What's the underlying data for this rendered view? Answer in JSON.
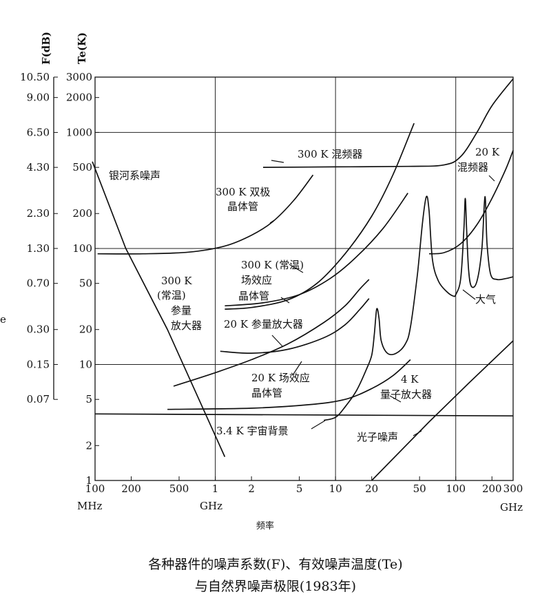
{
  "chart_data": {
    "type": "line",
    "title": "",
    "caption_line1": "各种器件的噪声系数(F)、有效噪声温度(Te)",
    "caption_line2": "与自然界噪声极限(1983年)",
    "xlabel": "频率",
    "y_left_label_F": "F(dB)",
    "y_left_label_T": "Te(K)",
    "side_mark": "e",
    "x_scale": "log",
    "y_scale": "log",
    "x_range_MHz": [
      100,
      300000
    ],
    "y_range_K": [
      1,
      3000
    ],
    "grid": true,
    "x_ticks": [
      {
        "v": 100,
        "label": "100"
      },
      {
        "v": 200,
        "label": "200"
      },
      {
        "v": 500,
        "label": "500"
      },
      {
        "v": 1000,
        "label": "1"
      },
      {
        "v": 2000,
        "label": "2"
      },
      {
        "v": 5000,
        "label": "5"
      },
      {
        "v": 10000,
        "label": "10"
      },
      {
        "v": 20000,
        "label": "20"
      },
      {
        "v": 50000,
        "label": "50"
      },
      {
        "v": 100000,
        "label": "100"
      },
      {
        "v": 200000,
        "label": "200"
      },
      {
        "v": 300000,
        "label": "300"
      }
    ],
    "x_unit_labels": {
      "mhz": "MHz",
      "ghz_mid": "GHz",
      "ghz_end": "GHz"
    },
    "x_grid": [
      1000,
      10000,
      100000
    ],
    "y_ticks_T": [
      {
        "v": 1,
        "label": "1"
      },
      {
        "v": 2,
        "label": "2"
      },
      {
        "v": 5,
        "label": "5"
      },
      {
        "v": 10,
        "label": "10"
      },
      {
        "v": 20,
        "label": "20"
      },
      {
        "v": 50,
        "label": "50"
      },
      {
        "v": 100,
        "label": "100"
      },
      {
        "v": 200,
        "label": "200"
      },
      {
        "v": 500,
        "label": "500"
      },
      {
        "v": 1000,
        "label": "1000"
      },
      {
        "v": 2000,
        "label": "2000"
      },
      {
        "v": 3000,
        "label": "3000"
      }
    ],
    "y_grid": [
      10,
      100,
      1000
    ],
    "y_ticks_F": [
      {
        "T": 3000,
        "label": "10.50"
      },
      {
        "T": 2000,
        "label": "9.00"
      },
      {
        "T": 1000,
        "label": "6.50"
      },
      {
        "T": 500,
        "label": "4.30"
      },
      {
        "T": 200,
        "label": "2.30"
      },
      {
        "T": 100,
        "label": "1.30"
      },
      {
        "T": 50,
        "label": "0.70"
      },
      {
        "T": 20,
        "label": "0.30"
      },
      {
        "T": 10,
        "label": "0.15"
      },
      {
        "T": 5,
        "label": "0.07"
      }
    ],
    "series": [
      {
        "key": "galactic",
        "points": [
          [
            95,
            560
          ],
          [
            180,
            100
          ],
          [
            400,
            20
          ],
          [
            1200,
            1.6
          ]
        ]
      },
      {
        "key": "bjt300",
        "points": [
          [
            105,
            90
          ],
          [
            250,
            90
          ],
          [
            600,
            93
          ],
          [
            1200,
            105
          ],
          [
            2000,
            130
          ],
          [
            3000,
            170
          ],
          [
            4500,
            260
          ],
          [
            6500,
            430
          ]
        ]
      },
      {
        "key": "mixer300",
        "points": [
          [
            2500,
            500
          ],
          [
            10000,
            505
          ],
          [
            40000,
            510
          ],
          [
            80000,
            525
          ],
          [
            110000,
            620
          ],
          [
            150000,
            1000
          ],
          [
            200000,
            1700
          ],
          [
            300000,
            2900
          ]
        ]
      },
      {
        "key": "fet300",
        "points": [
          [
            1200,
            30
          ],
          [
            2000,
            31
          ],
          [
            4000,
            36
          ],
          [
            7000,
            50
          ],
          [
            12000,
            90
          ],
          [
            20000,
            190
          ],
          [
            30000,
            430
          ],
          [
            45000,
            1200
          ]
        ]
      },
      {
        "key": "paramp300",
        "points": [
          [
            1200,
            32
          ],
          [
            2500,
            34
          ],
          [
            5000,
            40
          ],
          [
            9000,
            55
          ],
          [
            15000,
            85
          ],
          [
            25000,
            150
          ],
          [
            40000,
            300
          ]
        ]
      },
      {
        "key": "paramp20",
        "points": [
          [
            1100,
            13
          ],
          [
            2000,
            12.5
          ],
          [
            4000,
            13.5
          ],
          [
            8000,
            17
          ],
          [
            12000,
            22
          ],
          [
            16000,
            30
          ],
          [
            19000,
            37
          ]
        ]
      },
      {
        "key": "fet20",
        "points": [
          [
            450,
            6.5
          ],
          [
            1000,
            8.5
          ],
          [
            2000,
            11
          ],
          [
            4000,
            15
          ],
          [
            8000,
            23
          ],
          [
            12000,
            32
          ],
          [
            16000,
            45
          ],
          [
            19000,
            54
          ]
        ]
      },
      {
        "key": "maser4",
        "points": [
          [
            400,
            4.1
          ],
          [
            2000,
            4.2
          ],
          [
            6000,
            4.5
          ],
          [
            12000,
            5
          ],
          [
            20000,
            6.2
          ],
          [
            30000,
            8
          ],
          [
            42000,
            11
          ]
        ]
      },
      {
        "key": "cmb",
        "points": [
          [
            100,
            3.75
          ],
          [
            300000,
            3.6
          ]
        ]
      },
      {
        "key": "cmb_rise",
        "points": [
          [
            8000,
            3.3
          ],
          [
            10000,
            3.5
          ],
          [
            12000,
            4.3
          ],
          [
            15000,
            6
          ],
          [
            18000,
            9
          ],
          [
            20000,
            12
          ],
          [
            21000,
            18
          ],
          [
            22000,
            30
          ],
          [
            23000,
            25
          ],
          [
            24000,
            16
          ],
          [
            27000,
            12.5
          ],
          [
            32000,
            12.5
          ],
          [
            38000,
            15
          ],
          [
            42000,
            21
          ],
          [
            48000,
            60
          ],
          [
            53000,
            170
          ],
          [
            57000,
            280
          ],
          [
            60000,
            210
          ],
          [
            64000,
            80
          ],
          [
            72000,
            52
          ],
          [
            85000,
            42
          ],
          [
            95000,
            39
          ],
          [
            100000,
            40
          ],
          [
            110000,
            55
          ],
          [
            117000,
            150
          ],
          [
            120000,
            270
          ],
          [
            123000,
            150
          ],
          [
            128000,
            65
          ],
          [
            135000,
            47
          ],
          [
            150000,
            52
          ],
          [
            165000,
            100
          ],
          [
            175000,
            280
          ],
          [
            182000,
            110
          ],
          [
            195000,
            60
          ],
          [
            220000,
            54
          ],
          [
            260000,
            55
          ],
          [
            300000,
            57
          ]
        ]
      },
      {
        "key": "mixer20",
        "points": [
          [
            60000,
            90
          ],
          [
            80000,
            92
          ],
          [
            110000,
            110
          ],
          [
            150000,
            160
          ],
          [
            200000,
            270
          ],
          [
            260000,
            480
          ],
          [
            300000,
            700
          ]
        ]
      },
      {
        "key": "photon",
        "points": [
          [
            20000,
            1
          ],
          [
            60000,
            3.2
          ],
          [
            130000,
            7
          ],
          [
            300000,
            16
          ]
        ]
      }
    ],
    "annotations": {
      "galactic": "银河系噪声",
      "bjt_l1": "300 K 双极",
      "bjt_l2": "晶体管",
      "mixer300": "300 K 混频器",
      "mixer20_l1": "20 K",
      "mixer20_l2": "混频器",
      "fet300_l1": "300 K (常温)",
      "fet300_l2": "场效应",
      "fet300_l3": "晶体管",
      "paramp300_l1": "300 K",
      "paramp300_l2": "(常温)",
      "paramp300_l3": "参量",
      "paramp300_l4": "放大器",
      "paramp20": "20 K 参量放大器",
      "fet20_l1": "20 K 场效应",
      "fet20_l2": "晶体管",
      "maser_l1": "4 K",
      "maser_l2": "量子放大器",
      "atmosphere": "大气",
      "cmb": "3.4 K 宇宙背景",
      "photon": "光子噪声"
    }
  }
}
